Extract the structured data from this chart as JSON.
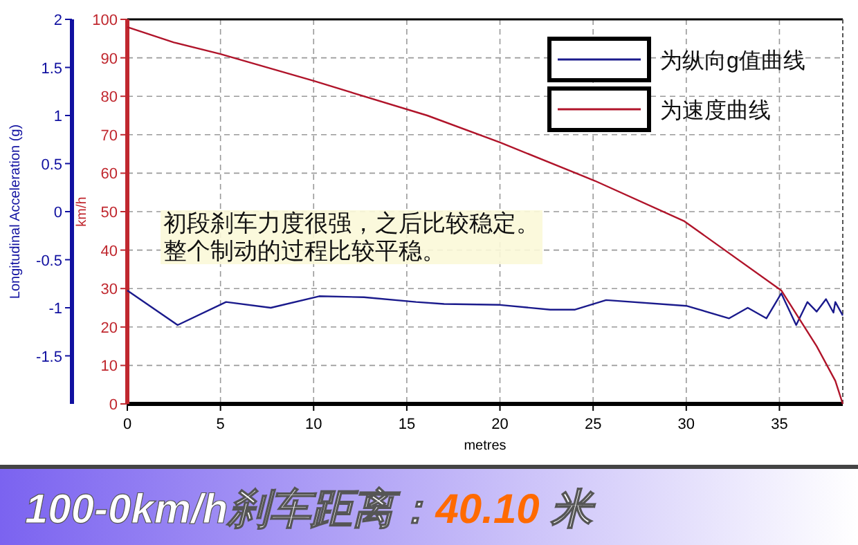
{
  "chart_data": {
    "type": "line",
    "title": "100-0km/h刹车距离：40.10 米",
    "xlabel": "metres",
    "ylabel": "km/h",
    "y2label": "Longitudinal Acceleration (g)",
    "annotations": [
      "初段刹车力度很强，之后比较稳定。",
      "整个制动的过程比较平稳。"
    ],
    "xlim": [
      0,
      38.4
    ],
    "xticks": [
      0,
      5,
      10,
      15,
      20,
      25,
      30,
      35
    ],
    "ylim": [
      0,
      100
    ],
    "yticks": [
      0,
      10,
      20,
      30,
      40,
      50,
      60,
      70,
      80,
      90,
      100
    ],
    "y2lim": [
      -2,
      2
    ],
    "y2ticks": [
      -1.5,
      -1,
      -0.5,
      0,
      0.5,
      1,
      1.5,
      2
    ],
    "grid": true,
    "legend": "top right",
    "marker": "none",
    "line_style": "solid",
    "series": [
      {
        "name": "为纵向g值曲线",
        "color": "#1a1a8c",
        "axis": "y2",
        "x": [
          0,
          2.7,
          5.3,
          7.7,
          10.3,
          12.7,
          15.5,
          17,
          20,
          22.7,
          24,
          25.7,
          30,
          32.3,
          33.3,
          34.3,
          35.1,
          35.9,
          36.5,
          37,
          37.5,
          37.9,
          38,
          38.4
        ],
        "values": [
          -0.82,
          -1.18,
          -0.94,
          -1.0,
          -0.88,
          -0.89,
          -0.94,
          -0.96,
          -0.97,
          -1.02,
          -1.02,
          -0.92,
          -0.98,
          -1.11,
          -1.0,
          -1.11,
          -0.85,
          -1.18,
          -0.94,
          -1.04,
          -0.91,
          -1.05,
          -0.94,
          -1.08
        ]
      },
      {
        "name": "为速度曲线",
        "color": "#b0142a",
        "axis": "y",
        "x": [
          0,
          2.5,
          5,
          10,
          16.1,
          20,
          25.1,
          29.9,
          35.1,
          37,
          38,
          38.4
        ],
        "values": [
          98,
          94,
          91,
          84,
          75,
          68,
          58,
          47.5,
          29.5,
          15,
          6,
          0
        ]
      }
    ]
  }
}
